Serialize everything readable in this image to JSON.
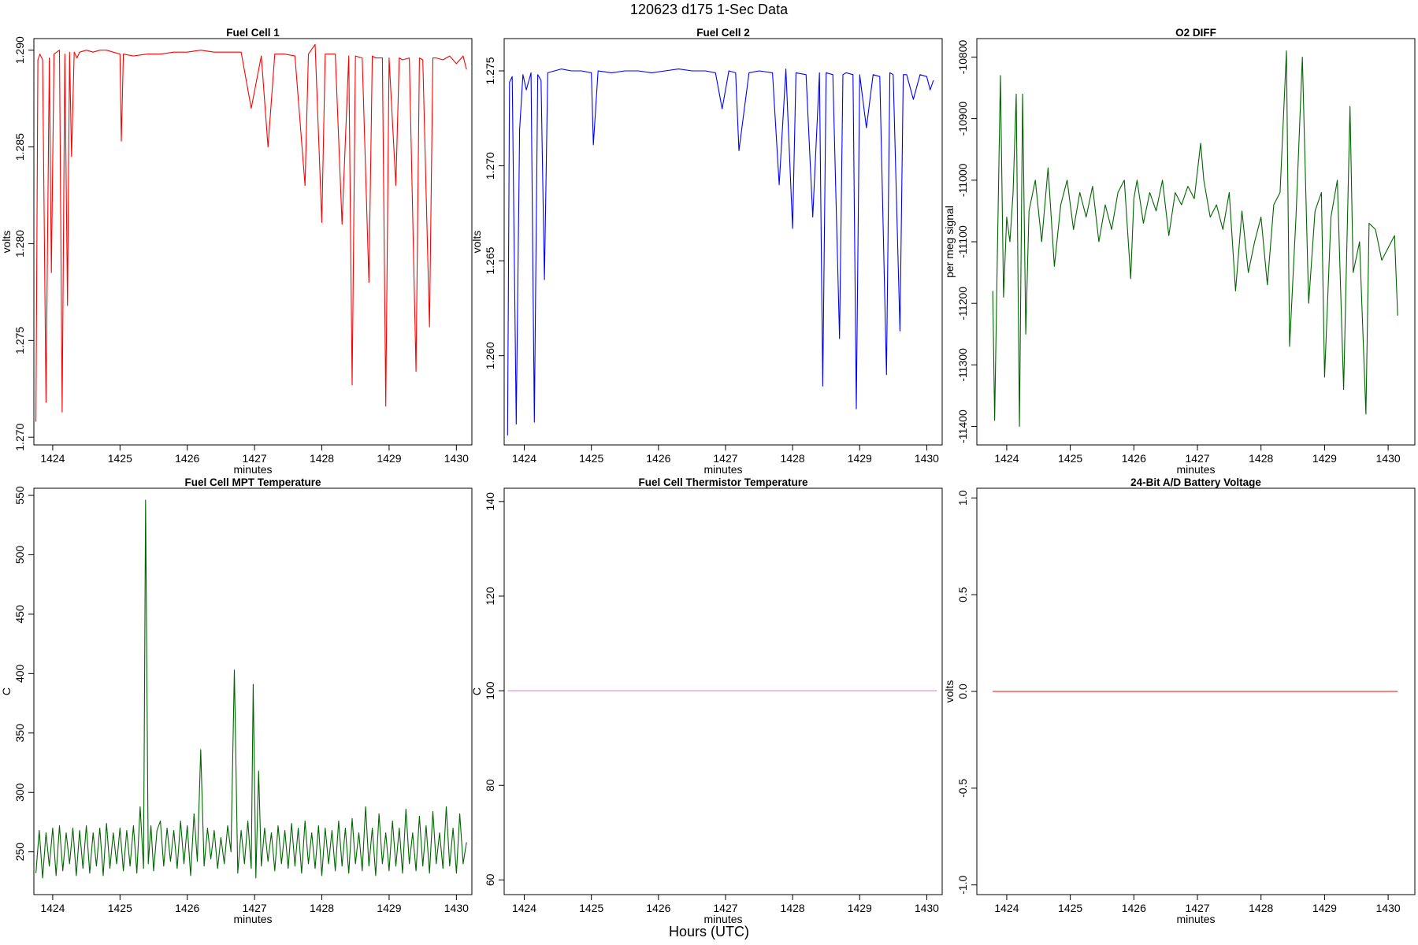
{
  "figure": {
    "title": "120623   d175   1-Sec Data",
    "outer_xlabel": "Hours (UTC)"
  },
  "chart_data": [
    {
      "id": "fc1",
      "type": "line",
      "title": "Fuel Cell 1",
      "xlabel": "minutes",
      "ylabel": "volts",
      "color": "#ff0000",
      "xlim": [
        1423.72,
        1430.23
      ],
      "ylim": [
        1.2696,
        1.2906
      ],
      "xticks": [
        1424,
        1425,
        1426,
        1427,
        1428,
        1429,
        1430
      ],
      "yticks": [
        1.27,
        1.275,
        1.28,
        1.285,
        1.29
      ],
      "ytick_labels": [
        "1.270",
        "1.275",
        "1.280",
        "1.285",
        "1.290"
      ],
      "x": [
        1423.75,
        1423.78,
        1423.81,
        1423.85,
        1423.9,
        1423.95,
        1423.98,
        1424.02,
        1424.06,
        1424.1,
        1424.14,
        1424.18,
        1424.22,
        1424.25,
        1424.28,
        1424.32,
        1424.36,
        1424.4,
        1424.5,
        1424.6,
        1424.7,
        1424.8,
        1424.9,
        1425.0,
        1425.02,
        1425.05,
        1425.2,
        1425.4,
        1425.6,
        1425.8,
        1426.0,
        1426.2,
        1426.4,
        1426.6,
        1426.8,
        1426.95,
        1427.1,
        1427.2,
        1427.3,
        1427.45,
        1427.6,
        1427.75,
        1427.8,
        1427.9,
        1428.0,
        1428.05,
        1428.2,
        1428.3,
        1428.4,
        1428.45,
        1428.5,
        1428.6,
        1428.7,
        1428.75,
        1428.8,
        1428.9,
        1428.95,
        1429.0,
        1429.1,
        1429.15,
        1429.2,
        1429.3,
        1429.4,
        1429.45,
        1429.5,
        1429.6,
        1429.65,
        1429.7,
        1429.8,
        1429.9,
        1430.0,
        1430.1,
        1430.15
      ],
      "y": [
        1.2708,
        1.2895,
        1.2898,
        1.2895,
        1.2718,
        1.2896,
        1.2785,
        1.2898,
        1.2899,
        1.29,
        1.2713,
        1.2898,
        1.2768,
        1.2899,
        1.2845,
        1.2899,
        1.2896,
        1.2899,
        1.29,
        1.2899,
        1.29,
        1.29,
        1.2899,
        1.2898,
        1.2853,
        1.2898,
        1.2897,
        1.2898,
        1.2898,
        1.2899,
        1.2899,
        1.29,
        1.2899,
        1.2899,
        1.2899,
        1.287,
        1.2897,
        1.285,
        1.2898,
        1.2898,
        1.2897,
        1.283,
        1.2898,
        1.2903,
        1.2811,
        1.2898,
        1.2898,
        1.281,
        1.2897,
        1.2727,
        1.2897,
        1.2896,
        1.278,
        1.2897,
        1.2896,
        1.2896,
        1.2716,
        1.2896,
        1.283,
        1.2896,
        1.2895,
        1.2896,
        1.2734,
        1.2896,
        1.2895,
        1.2757,
        1.2896,
        1.2896,
        1.2895,
        1.2897,
        1.2893,
        1.2897,
        1.289
      ]
    },
    {
      "id": "fc2",
      "type": "line",
      "title": "Fuel Cell 2",
      "xlabel": "minutes",
      "ylabel": "volts",
      "color": "#0000ff",
      "xlim": [
        1423.7,
        1430.23
      ],
      "ylim": [
        1.2553,
        1.2767
      ],
      "xticks": [
        1424,
        1425,
        1426,
        1427,
        1428,
        1429,
        1430
      ],
      "yticks": [
        1.26,
        1.265,
        1.27,
        1.275
      ],
      "ytick_labels": [
        "1.260",
        "1.265",
        "1.270",
        "1.275"
      ],
      "x": [
        1423.75,
        1423.78,
        1423.82,
        1423.88,
        1423.93,
        1423.98,
        1424.03,
        1424.1,
        1424.15,
        1424.2,
        1424.25,
        1424.3,
        1424.35,
        1424.45,
        1424.55,
        1424.7,
        1424.85,
        1425.0,
        1425.03,
        1425.1,
        1425.3,
        1425.5,
        1425.7,
        1425.9,
        1426.1,
        1426.3,
        1426.5,
        1426.7,
        1426.85,
        1426.95,
        1427.05,
        1427.15,
        1427.2,
        1427.35,
        1427.5,
        1427.7,
        1427.8,
        1427.9,
        1428.0,
        1428.05,
        1428.2,
        1428.3,
        1428.4,
        1428.45,
        1428.5,
        1428.6,
        1428.7,
        1428.75,
        1428.8,
        1428.9,
        1428.95,
        1429.0,
        1429.1,
        1429.2,
        1429.3,
        1429.4,
        1429.45,
        1429.5,
        1429.6,
        1429.65,
        1429.7,
        1429.8,
        1429.9,
        1430.0,
        1430.05,
        1430.1
      ],
      "y": [
        1.2558,
        1.2744,
        1.2747,
        1.2564,
        1.2719,
        1.2748,
        1.274,
        1.2749,
        1.2565,
        1.2748,
        1.2745,
        1.264,
        1.2749,
        1.275,
        1.2751,
        1.275,
        1.275,
        1.2749,
        1.2711,
        1.275,
        1.2749,
        1.275,
        1.275,
        1.2749,
        1.275,
        1.2751,
        1.275,
        1.275,
        1.2749,
        1.273,
        1.275,
        1.2749,
        1.2708,
        1.2749,
        1.275,
        1.2749,
        1.269,
        1.2751,
        1.2667,
        1.2749,
        1.2748,
        1.2673,
        1.2749,
        1.2584,
        1.2749,
        1.2748,
        1.2609,
        1.2748,
        1.2749,
        1.2748,
        1.2572,
        1.2748,
        1.272,
        1.2748,
        1.2747,
        1.259,
        1.2749,
        1.2748,
        1.2613,
        1.2748,
        1.2748,
        1.2735,
        1.2748,
        1.2747,
        1.274,
        1.2745
      ]
    },
    {
      "id": "o2diff",
      "type": "line",
      "title": "O2 DIFF",
      "xlabel": "minutes",
      "ylabel": "per meg signal",
      "color": "#006400",
      "xlim": [
        1423.53,
        1430.42
      ],
      "ylim": [
        -11430,
        -10770
      ],
      "xticks": [
        1424,
        1425,
        1426,
        1427,
        1428,
        1429,
        1430
      ],
      "yticks": [
        -11400,
        -11300,
        -11200,
        -11100,
        -11000,
        -10900,
        -10800
      ],
      "ytick_labels": [
        "-11400",
        "-11300",
        "-11200",
        "-11100",
        "-11000",
        "-10900",
        "-10800"
      ],
      "x": [
        1423.78,
        1423.81,
        1423.85,
        1423.9,
        1423.95,
        1424.0,
        1424.05,
        1424.1,
        1424.15,
        1424.2,
        1424.25,
        1424.3,
        1424.35,
        1424.45,
        1424.55,
        1424.65,
        1424.75,
        1424.85,
        1424.95,
        1425.05,
        1425.15,
        1425.25,
        1425.35,
        1425.45,
        1425.55,
        1425.65,
        1425.75,
        1425.85,
        1425.95,
        1426.0,
        1426.05,
        1426.15,
        1426.25,
        1426.35,
        1426.45,
        1426.55,
        1426.65,
        1426.75,
        1426.85,
        1426.95,
        1427.05,
        1427.1,
        1427.2,
        1427.3,
        1427.4,
        1427.5,
        1427.6,
        1427.7,
        1427.8,
        1427.9,
        1428.0,
        1428.1,
        1428.2,
        1428.3,
        1428.4,
        1428.45,
        1428.55,
        1428.65,
        1428.75,
        1428.85,
        1428.95,
        1429.0,
        1429.1,
        1429.2,
        1429.3,
        1429.4,
        1429.45,
        1429.55,
        1429.65,
        1429.7,
        1429.8,
        1429.9,
        1430.0,
        1430.1,
        1430.15
      ],
      "y": [
        -11180,
        -11390,
        -11140,
        -10830,
        -11190,
        -11060,
        -11100,
        -11020,
        -10860,
        -11400,
        -10860,
        -11250,
        -11050,
        -11000,
        -11100,
        -10980,
        -11140,
        -11040,
        -11000,
        -11080,
        -11020,
        -11060,
        -11010,
        -11100,
        -11040,
        -11080,
        -11020,
        -11000,
        -11160,
        -11030,
        -11000,
        -11070,
        -11020,
        -11050,
        -11000,
        -11090,
        -11020,
        -11040,
        -11010,
        -11030,
        -10940,
        -11000,
        -11060,
        -11040,
        -11080,
        -11020,
        -11180,
        -11050,
        -11150,
        -11100,
        -11060,
        -11170,
        -11040,
        -11020,
        -10790,
        -11270,
        -11060,
        -10800,
        -11200,
        -11050,
        -11020,
        -11320,
        -11060,
        -11000,
        -11340,
        -10880,
        -11150,
        -11100,
        -11380,
        -11070,
        -11080,
        -11130,
        -11110,
        -11090,
        -11220
      ]
    },
    {
      "id": "mpt",
      "type": "line",
      "title": "Fuel Cell MPT Temperature",
      "xlabel": "minutes",
      "ylabel": "C",
      "color": "#006400",
      "xlim": [
        1423.72,
        1430.23
      ],
      "ylim": [
        214,
        556
      ],
      "xticks": [
        1424,
        1425,
        1426,
        1427,
        1428,
        1429,
        1430
      ],
      "yticks": [
        250,
        300,
        350,
        400,
        450,
        500,
        550
      ],
      "ytick_labels": [
        "250",
        "300",
        "350",
        "400",
        "450",
        "500",
        "550"
      ],
      "x": [
        1423.75,
        1423.8,
        1423.85,
        1423.9,
        1423.95,
        1424.0,
        1424.05,
        1424.1,
        1424.15,
        1424.2,
        1424.25,
        1424.3,
        1424.35,
        1424.4,
        1424.45,
        1424.5,
        1424.55,
        1424.6,
        1424.65,
        1424.7,
        1424.75,
        1424.8,
        1424.85,
        1424.9,
        1424.95,
        1425.0,
        1425.05,
        1425.1,
        1425.15,
        1425.2,
        1425.25,
        1425.3,
        1425.35,
        1425.38,
        1425.42,
        1425.46,
        1425.5,
        1425.55,
        1425.6,
        1425.65,
        1425.7,
        1425.75,
        1425.8,
        1425.85,
        1425.9,
        1425.95,
        1426.0,
        1426.05,
        1426.1,
        1426.15,
        1426.2,
        1426.25,
        1426.3,
        1426.35,
        1426.4,
        1426.45,
        1426.5,
        1426.55,
        1426.6,
        1426.65,
        1426.7,
        1426.75,
        1426.8,
        1426.85,
        1426.9,
        1426.95,
        1426.98,
        1427.02,
        1427.06,
        1427.1,
        1427.15,
        1427.2,
        1427.25,
        1427.3,
        1427.35,
        1427.4,
        1427.45,
        1427.5,
        1427.55,
        1427.6,
        1427.65,
        1427.7,
        1427.75,
        1427.8,
        1427.85,
        1427.9,
        1427.95,
        1428.0,
        1428.05,
        1428.1,
        1428.15,
        1428.2,
        1428.25,
        1428.3,
        1428.35,
        1428.4,
        1428.45,
        1428.5,
        1428.55,
        1428.6,
        1428.65,
        1428.7,
        1428.75,
        1428.8,
        1428.85,
        1428.9,
        1428.95,
        1429.0,
        1429.05,
        1429.1,
        1429.15,
        1429.2,
        1429.25,
        1429.3,
        1429.35,
        1429.4,
        1429.45,
        1429.5,
        1429.55,
        1429.6,
        1429.65,
        1429.7,
        1429.75,
        1429.8,
        1429.85,
        1429.9,
        1429.95,
        1430.0,
        1430.05,
        1430.1,
        1430.15
      ],
      "y": [
        232,
        268,
        228,
        266,
        238,
        270,
        230,
        272,
        234,
        266,
        240,
        270,
        230,
        268,
        236,
        272,
        232,
        266,
        238,
        270,
        230,
        274,
        236,
        266,
        240,
        270,
        234,
        268,
        238,
        272,
        232,
        288,
        236,
        546,
        240,
        272,
        234,
        268,
        276,
        238,
        270,
        242,
        268,
        236,
        276,
        240,
        272,
        230,
        282,
        242,
        336,
        238,
        270,
        244,
        268,
        236,
        262,
        240,
        272,
        250,
        403,
        232,
        268,
        240,
        276,
        236,
        391,
        228,
        318,
        238,
        270,
        242,
        266,
        234,
        272,
        240,
        268,
        236,
        274,
        238,
        270,
        232,
        276,
        240,
        266,
        236,
        272,
        230,
        270,
        240,
        268,
        234,
        276,
        238,
        270,
        232,
        278,
        240,
        266,
        234,
        288,
        238,
        270,
        230,
        282,
        240,
        266,
        234,
        276,
        238,
        270,
        232,
        286,
        240,
        266,
        234,
        280,
        238,
        272,
        232,
        284,
        240,
        266,
        236,
        288,
        238,
        270,
        232,
        282,
        240,
        258
      ]
    },
    {
      "id": "thermistor",
      "type": "line",
      "title": "Fuel Cell Thermistor Temperature",
      "xlabel": "minutes",
      "ylabel": "C",
      "color": "#dd88dd",
      "xlim": [
        1423.7,
        1430.23
      ],
      "ylim": [
        56.9,
        142.8
      ],
      "xticks": [
        1424,
        1425,
        1426,
        1427,
        1428,
        1429,
        1430
      ],
      "yticks": [
        60,
        80,
        100,
        120,
        140
      ],
      "ytick_labels": [
        "60",
        "80",
        "100",
        "120",
        "140"
      ],
      "x": [
        1423.75,
        1430.15
      ],
      "y": [
        100,
        100
      ]
    },
    {
      "id": "battery",
      "type": "line",
      "title": "24-Bit A/D Battery Voltage",
      "xlabel": "minutes",
      "ylabel": "volts",
      "color": "#ff0000",
      "xlim": [
        1423.53,
        1430.42
      ],
      "ylim": [
        -1.05,
        1.05
      ],
      "xticks": [
        1424,
        1425,
        1426,
        1427,
        1428,
        1429,
        1430
      ],
      "yticks": [
        -1.0,
        -0.5,
        0.0,
        0.5,
        1.0
      ],
      "ytick_labels": [
        "-1.0",
        "-0.5",
        "0.0",
        "0.5",
        "1.0"
      ],
      "x": [
        1423.78,
        1430.15
      ],
      "y": [
        0,
        0
      ]
    }
  ]
}
